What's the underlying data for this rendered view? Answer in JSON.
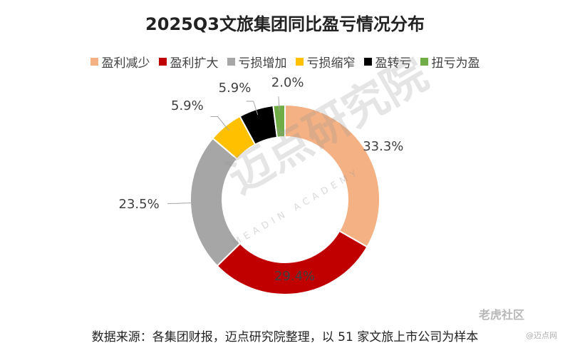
{
  "chart_data": {
    "type": "pie",
    "title": "2025Q3文旅集团同比盈亏情况分布",
    "categories": [
      "盈利减少",
      "盈利扩大",
      "亏损增加",
      "亏损缩窄",
      "盈转亏",
      "扭亏为盈"
    ],
    "values": [
      33.3,
      29.4,
      23.5,
      5.9,
      5.9,
      2.0
    ],
    "value_labels": [
      "33.3%",
      "29.4%",
      "23.5%",
      "5.9%",
      "5.9%",
      "2.0%"
    ],
    "colors": [
      "#F4B183",
      "#C00000",
      "#A6A6A6",
      "#FFC000",
      "#000000",
      "#70AD47"
    ],
    "legend": "top",
    "donut": true
  },
  "source": "数据来源：各集团财报，迈点研究院整理，以 51 家文旅上市公司为样本",
  "watermark": {
    "text": "迈点研究院",
    "subtext": "MEADIN ACADEMY",
    "corner_text": "老虎社区",
    "corner_sub": "@迈点网"
  }
}
